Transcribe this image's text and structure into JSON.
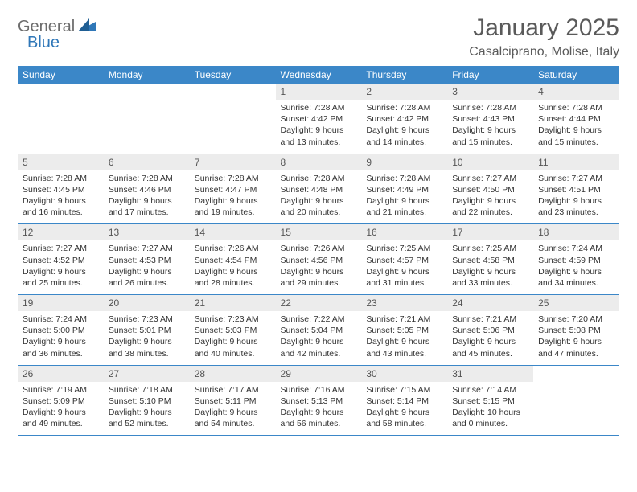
{
  "logo": {
    "text_a": "General",
    "text_b": "Blue"
  },
  "title": "January 2025",
  "location": "Casalciprano, Molise, Italy",
  "colors": {
    "header_bg": "#3b87c8",
    "header_text": "#ffffff",
    "daynum_bg": "#ececec",
    "rule": "#3b87c8",
    "logo_gray": "#6c6c6c",
    "logo_blue": "#2f77b8"
  },
  "weekdays": [
    "Sunday",
    "Monday",
    "Tuesday",
    "Wednesday",
    "Thursday",
    "Friday",
    "Saturday"
  ],
  "weeks": [
    [
      null,
      null,
      null,
      {
        "n": "1",
        "sunrise": "7:28 AM",
        "sunset": "4:42 PM",
        "dl_h": 9,
        "dl_m": 13
      },
      {
        "n": "2",
        "sunrise": "7:28 AM",
        "sunset": "4:42 PM",
        "dl_h": 9,
        "dl_m": 14
      },
      {
        "n": "3",
        "sunrise": "7:28 AM",
        "sunset": "4:43 PM",
        "dl_h": 9,
        "dl_m": 15
      },
      {
        "n": "4",
        "sunrise": "7:28 AM",
        "sunset": "4:44 PM",
        "dl_h": 9,
        "dl_m": 15
      }
    ],
    [
      {
        "n": "5",
        "sunrise": "7:28 AM",
        "sunset": "4:45 PM",
        "dl_h": 9,
        "dl_m": 16
      },
      {
        "n": "6",
        "sunrise": "7:28 AM",
        "sunset": "4:46 PM",
        "dl_h": 9,
        "dl_m": 17
      },
      {
        "n": "7",
        "sunrise": "7:28 AM",
        "sunset": "4:47 PM",
        "dl_h": 9,
        "dl_m": 19
      },
      {
        "n": "8",
        "sunrise": "7:28 AM",
        "sunset": "4:48 PM",
        "dl_h": 9,
        "dl_m": 20
      },
      {
        "n": "9",
        "sunrise": "7:28 AM",
        "sunset": "4:49 PM",
        "dl_h": 9,
        "dl_m": 21
      },
      {
        "n": "10",
        "sunrise": "7:27 AM",
        "sunset": "4:50 PM",
        "dl_h": 9,
        "dl_m": 22
      },
      {
        "n": "11",
        "sunrise": "7:27 AM",
        "sunset": "4:51 PM",
        "dl_h": 9,
        "dl_m": 23
      }
    ],
    [
      {
        "n": "12",
        "sunrise": "7:27 AM",
        "sunset": "4:52 PM",
        "dl_h": 9,
        "dl_m": 25
      },
      {
        "n": "13",
        "sunrise": "7:27 AM",
        "sunset": "4:53 PM",
        "dl_h": 9,
        "dl_m": 26
      },
      {
        "n": "14",
        "sunrise": "7:26 AM",
        "sunset": "4:54 PM",
        "dl_h": 9,
        "dl_m": 28
      },
      {
        "n": "15",
        "sunrise": "7:26 AM",
        "sunset": "4:56 PM",
        "dl_h": 9,
        "dl_m": 29
      },
      {
        "n": "16",
        "sunrise": "7:25 AM",
        "sunset": "4:57 PM",
        "dl_h": 9,
        "dl_m": 31
      },
      {
        "n": "17",
        "sunrise": "7:25 AM",
        "sunset": "4:58 PM",
        "dl_h": 9,
        "dl_m": 33
      },
      {
        "n": "18",
        "sunrise": "7:24 AM",
        "sunset": "4:59 PM",
        "dl_h": 9,
        "dl_m": 34
      }
    ],
    [
      {
        "n": "19",
        "sunrise": "7:24 AM",
        "sunset": "5:00 PM",
        "dl_h": 9,
        "dl_m": 36
      },
      {
        "n": "20",
        "sunrise": "7:23 AM",
        "sunset": "5:01 PM",
        "dl_h": 9,
        "dl_m": 38
      },
      {
        "n": "21",
        "sunrise": "7:23 AM",
        "sunset": "5:03 PM",
        "dl_h": 9,
        "dl_m": 40
      },
      {
        "n": "22",
        "sunrise": "7:22 AM",
        "sunset": "5:04 PM",
        "dl_h": 9,
        "dl_m": 42
      },
      {
        "n": "23",
        "sunrise": "7:21 AM",
        "sunset": "5:05 PM",
        "dl_h": 9,
        "dl_m": 43
      },
      {
        "n": "24",
        "sunrise": "7:21 AM",
        "sunset": "5:06 PM",
        "dl_h": 9,
        "dl_m": 45
      },
      {
        "n": "25",
        "sunrise": "7:20 AM",
        "sunset": "5:08 PM",
        "dl_h": 9,
        "dl_m": 47
      }
    ],
    [
      {
        "n": "26",
        "sunrise": "7:19 AM",
        "sunset": "5:09 PM",
        "dl_h": 9,
        "dl_m": 49
      },
      {
        "n": "27",
        "sunrise": "7:18 AM",
        "sunset": "5:10 PM",
        "dl_h": 9,
        "dl_m": 52
      },
      {
        "n": "28",
        "sunrise": "7:17 AM",
        "sunset": "5:11 PM",
        "dl_h": 9,
        "dl_m": 54
      },
      {
        "n": "29",
        "sunrise": "7:16 AM",
        "sunset": "5:13 PM",
        "dl_h": 9,
        "dl_m": 56
      },
      {
        "n": "30",
        "sunrise": "7:15 AM",
        "sunset": "5:14 PM",
        "dl_h": 9,
        "dl_m": 58
      },
      {
        "n": "31",
        "sunrise": "7:14 AM",
        "sunset": "5:15 PM",
        "dl_h": 10,
        "dl_m": 0
      },
      null
    ]
  ]
}
